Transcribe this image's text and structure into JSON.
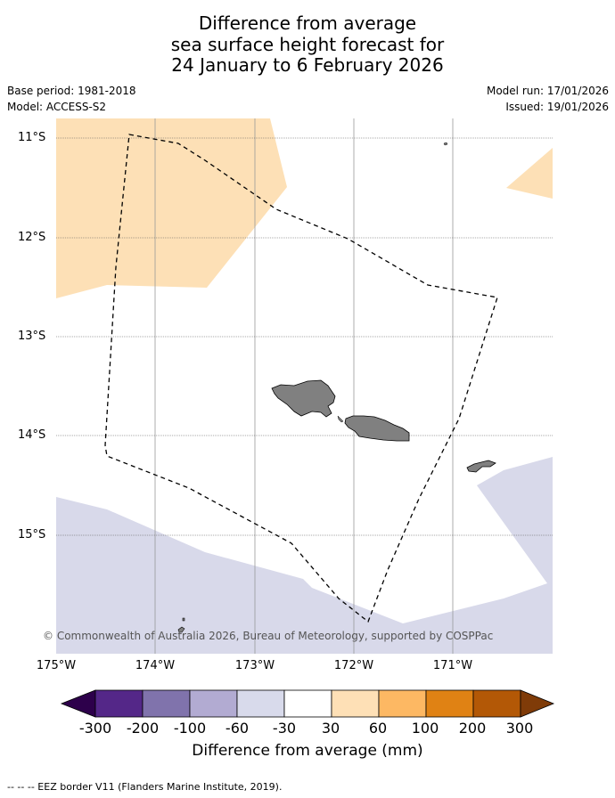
{
  "title": {
    "line1": "Difference from average",
    "line2": "sea surface height forecast for",
    "line3": "24 January to 6 February 2026"
  },
  "meta": {
    "base_period": "Base period: 1981-2018",
    "model": "Model: ACCESS-S2",
    "model_run": "Model run: 17/01/2026",
    "issued": "Issued: 19/01/2026"
  },
  "map": {
    "latitude_labels": [
      "11°S",
      "12°S",
      "13°S",
      "14°S",
      "15°S"
    ],
    "longitude_labels": [
      "175°W",
      "174°W",
      "173°W",
      "172°W",
      "171°W"
    ],
    "copyright": "© Commonwealth of Australia 2026, Bureau of Meteorology, supported by COSPPac",
    "colors": {
      "positive_30_60": "#fde0b6",
      "negative_30_60": "#d8d9ea",
      "land": "#808080"
    }
  },
  "colorbar": {
    "tick_labels": [
      "-300",
      "-200",
      "-100",
      "-60",
      "-30",
      "30",
      "60",
      "100",
      "200",
      "300"
    ],
    "colors": [
      "#2d004b",
      "#542788",
      "#8073ac",
      "#b2abd2",
      "#d8daeb",
      "#ffffff",
      "#fee0b6",
      "#fdb863",
      "#e08214",
      "#b35806",
      "#7f3b08"
    ],
    "label": "Difference from average (mm)"
  },
  "footer": {
    "legend": "--  --  -- EEZ border V11 (Flanders Marine Institute, 2019)."
  }
}
